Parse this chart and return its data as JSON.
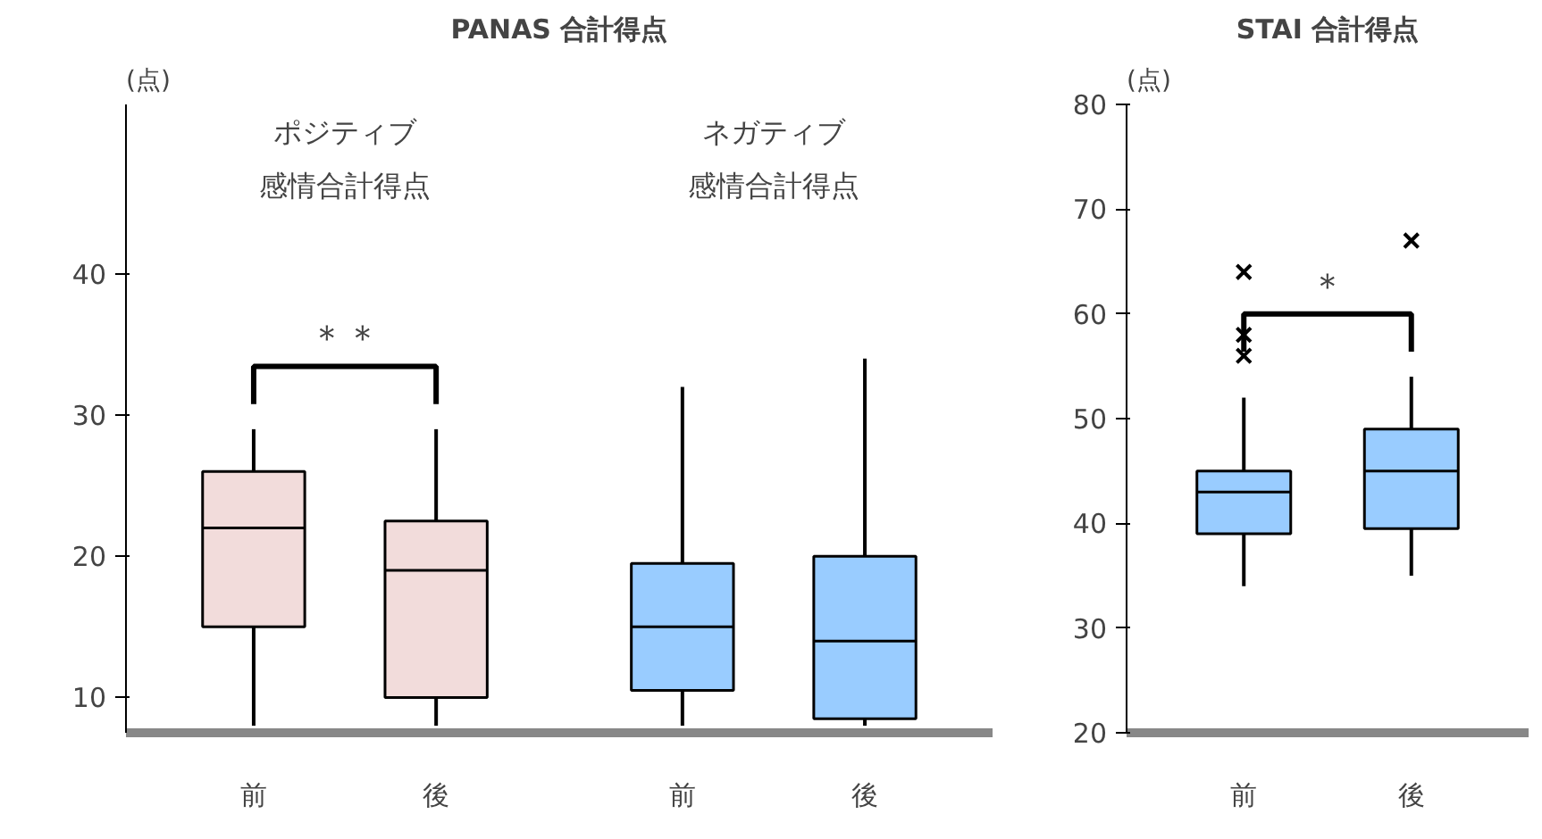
{
  "chart_data": [
    {
      "type": "box",
      "title": "PANAS 合計得点",
      "ylabel": "(点)",
      "categories": [
        "前",
        "後",
        "前",
        "後"
      ],
      "colors": [
        "#f2dcdb",
        "#f2dcdb",
        "#99ccff",
        "#99ccff"
      ],
      "boxes": [
        {
          "low": 8,
          "q1": 15,
          "median": 22,
          "q3": 26,
          "high": 29
        },
        {
          "low": 8,
          "q1": 10,
          "median": 19,
          "q3": 22.5,
          "high": 29
        },
        {
          "low": 8,
          "q1": 10.5,
          "median": 15,
          "q3": 19.5,
          "high": 32
        },
        {
          "low": 8,
          "q1": 8.5,
          "median": 14,
          "q3": 20,
          "high": 34
        }
      ],
      "ylim": [
        7.5,
        52
      ],
      "yticks": [
        10,
        20,
        30,
        40
      ],
      "grid": false,
      "annotations": [
        "ポジティブ感情合計得点",
        "ネガティブ感情合計得点",
        "＊＊"
      ]
    },
    {
      "type": "box",
      "title": "STAI 合計得点",
      "ylabel": "(点)",
      "categories": [
        "前",
        "後"
      ],
      "colors": [
        "#99ccff",
        "#99ccff"
      ],
      "boxes": [
        {
          "low": 34,
          "q1": 39,
          "median": 43,
          "q3": 45,
          "high": 52,
          "outliers": [
            56,
            58,
            64
          ]
        },
        {
          "low": 35,
          "q1": 39.5,
          "median": 45,
          "q3": 49,
          "high": 54,
          "outliers": [
            67
          ]
        }
      ],
      "ylim": [
        20,
        80
      ],
      "yticks": [
        20,
        30,
        40,
        50,
        60,
        70,
        80
      ],
      "grid": false,
      "annotations": [
        "＊"
      ]
    }
  ]
}
